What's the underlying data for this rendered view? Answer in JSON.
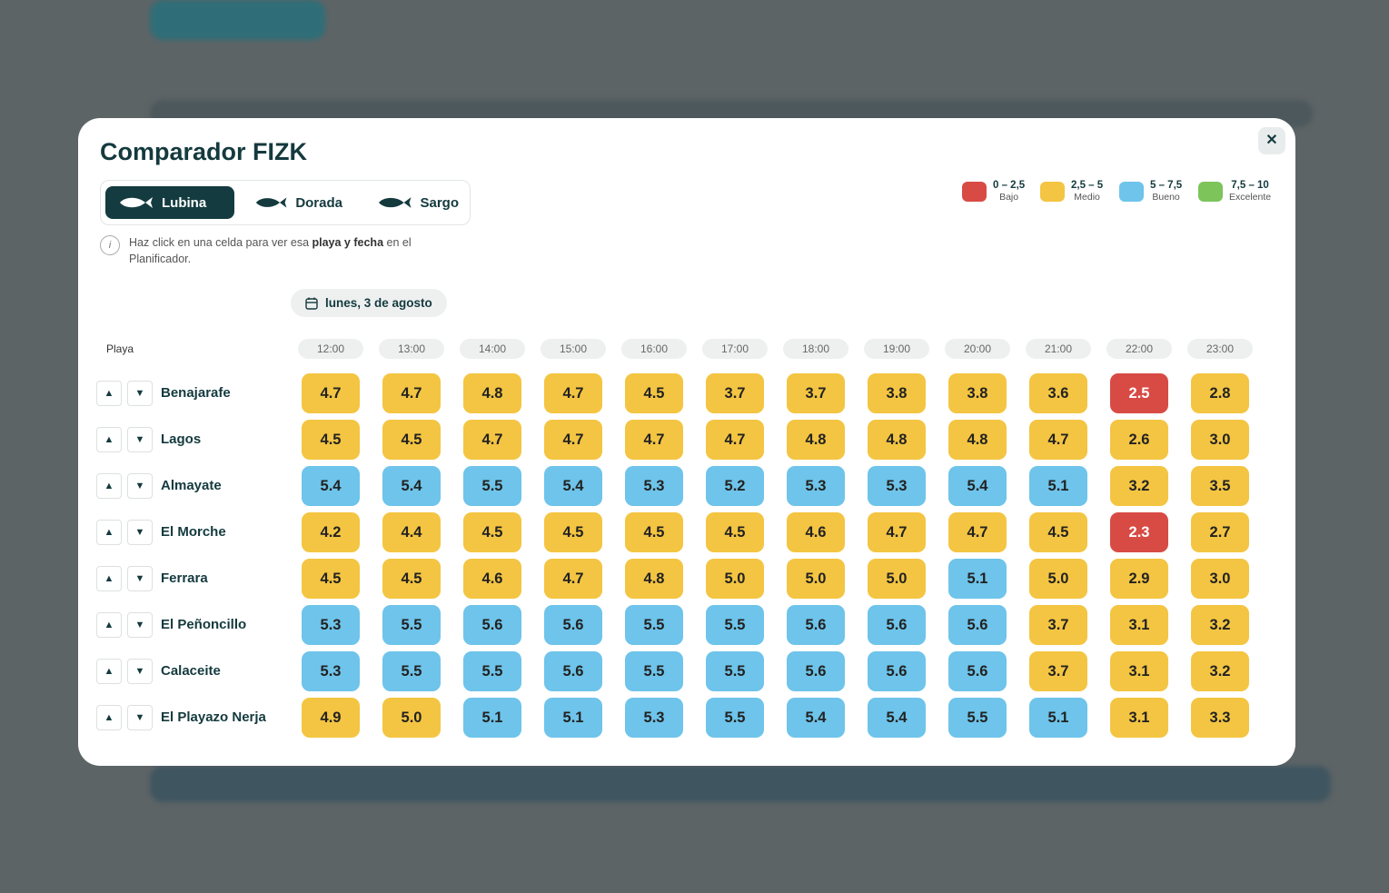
{
  "modal": {
    "title": "Comparador FIZK",
    "tabs": [
      "Lubina",
      "Dorada",
      "Sargo"
    ],
    "active_tab": 0,
    "info": {
      "before": "Haz click en una celda para ver esa ",
      "bold": "playa y fecha",
      "after": " en el Planificador."
    },
    "legend": [
      {
        "range": "0 – 2,5",
        "label": "Bajo",
        "color": "#d84b45"
      },
      {
        "range": "2,5 – 5",
        "label": "Medio",
        "color": "#f4c542"
      },
      {
        "range": "5 – 7,5",
        "label": "Bueno",
        "color": "#6ec4ea"
      },
      {
        "range": "7,5 – 10",
        "label": "Excelente",
        "color": "#7dc45b"
      }
    ],
    "date": "lunes, 3 de agosto",
    "table": {
      "row_header": "Playa",
      "hours": [
        "12:00",
        "13:00",
        "14:00",
        "15:00",
        "16:00",
        "17:00",
        "18:00",
        "19:00",
        "20:00",
        "21:00",
        "22:00",
        "23:00"
      ],
      "rows": [
        {
          "name": "Benajarafe",
          "values": [
            "4.7",
            "4.7",
            "4.8",
            "4.7",
            "4.5",
            "3.7",
            "3.7",
            "3.8",
            "3.8",
            "3.6",
            "2.5",
            "2.8"
          ]
        },
        {
          "name": "Lagos",
          "values": [
            "4.5",
            "4.5",
            "4.7",
            "4.7",
            "4.7",
            "4.7",
            "4.8",
            "4.8",
            "4.8",
            "4.7",
            "2.6",
            "3.0"
          ]
        },
        {
          "name": "Almayate",
          "values": [
            "5.4",
            "5.4",
            "5.5",
            "5.4",
            "5.3",
            "5.2",
            "5.3",
            "5.3",
            "5.4",
            "5.1",
            "3.2",
            "3.5"
          ]
        },
        {
          "name": "El Morche",
          "values": [
            "4.2",
            "4.4",
            "4.5",
            "4.5",
            "4.5",
            "4.5",
            "4.6",
            "4.7",
            "4.7",
            "4.5",
            "2.3",
            "2.7"
          ]
        },
        {
          "name": "Ferrara",
          "values": [
            "4.5",
            "4.5",
            "4.6",
            "4.7",
            "4.8",
            "5.0",
            "5.0",
            "5.0",
            "5.1",
            "5.0",
            "2.9",
            "3.0"
          ]
        },
        {
          "name": "El Peñoncillo",
          "values": [
            "5.3",
            "5.5",
            "5.6",
            "5.6",
            "5.5",
            "5.5",
            "5.6",
            "5.6",
            "5.6",
            "3.7",
            "3.1",
            "3.2"
          ]
        },
        {
          "name": "Calaceite",
          "values": [
            "5.3",
            "5.5",
            "5.5",
            "5.6",
            "5.5",
            "5.5",
            "5.6",
            "5.6",
            "5.6",
            "3.7",
            "3.1",
            "3.2"
          ]
        },
        {
          "name": "El Playazo Nerja",
          "values": [
            "4.9",
            "5.0",
            "5.1",
            "5.1",
            "5.3",
            "5.5",
            "5.4",
            "5.4",
            "5.5",
            "5.1",
            "3.1",
            "3.3"
          ]
        }
      ]
    }
  }
}
